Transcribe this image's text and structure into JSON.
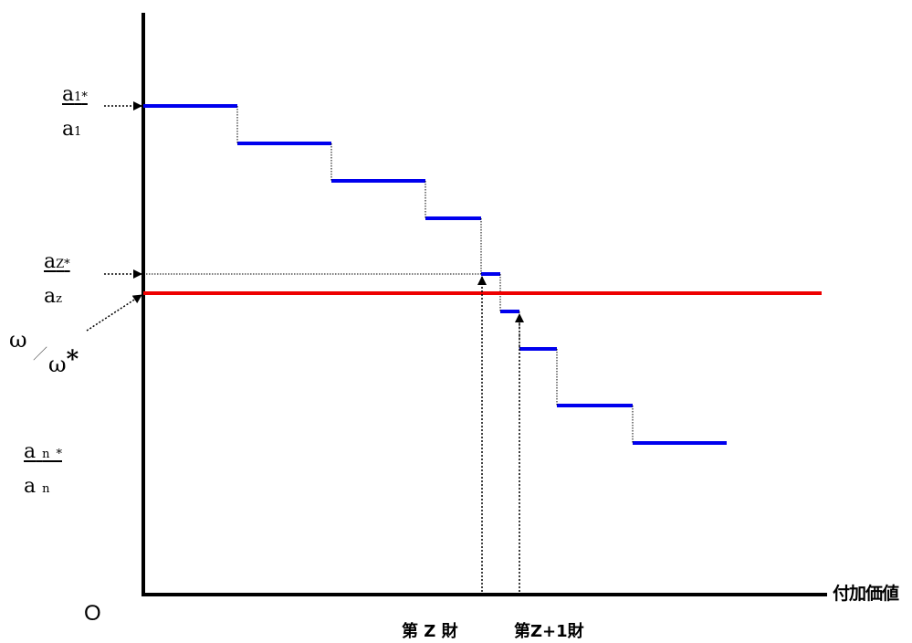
{
  "axes": {
    "origin_label": "O",
    "x_label": "付加価値"
  },
  "y_labels": {
    "a1_star": {
      "base": "a",
      "sub": "1",
      "mark": "*"
    },
    "a1": {
      "base": "a",
      "sub": "1"
    },
    "az_star": {
      "base": "a",
      "sub": "Z",
      "mark": "*"
    },
    "az": {
      "base": "a",
      "sub": "z"
    },
    "an_star": {
      "base": "a",
      "sub": "n",
      "mark": "*"
    },
    "an": {
      "base": "a",
      "sub": "n"
    }
  },
  "omega": {
    "top": "ω",
    "slash": "／",
    "bottom": "ω",
    "bottom_mark": "*"
  },
  "x_markers": {
    "good_z": "第 Z 財",
    "good_z1": "第Z+1財"
  },
  "colors": {
    "steps": "#0000ee",
    "wage_line": "#ee0000",
    "axis": "#000000"
  }
}
